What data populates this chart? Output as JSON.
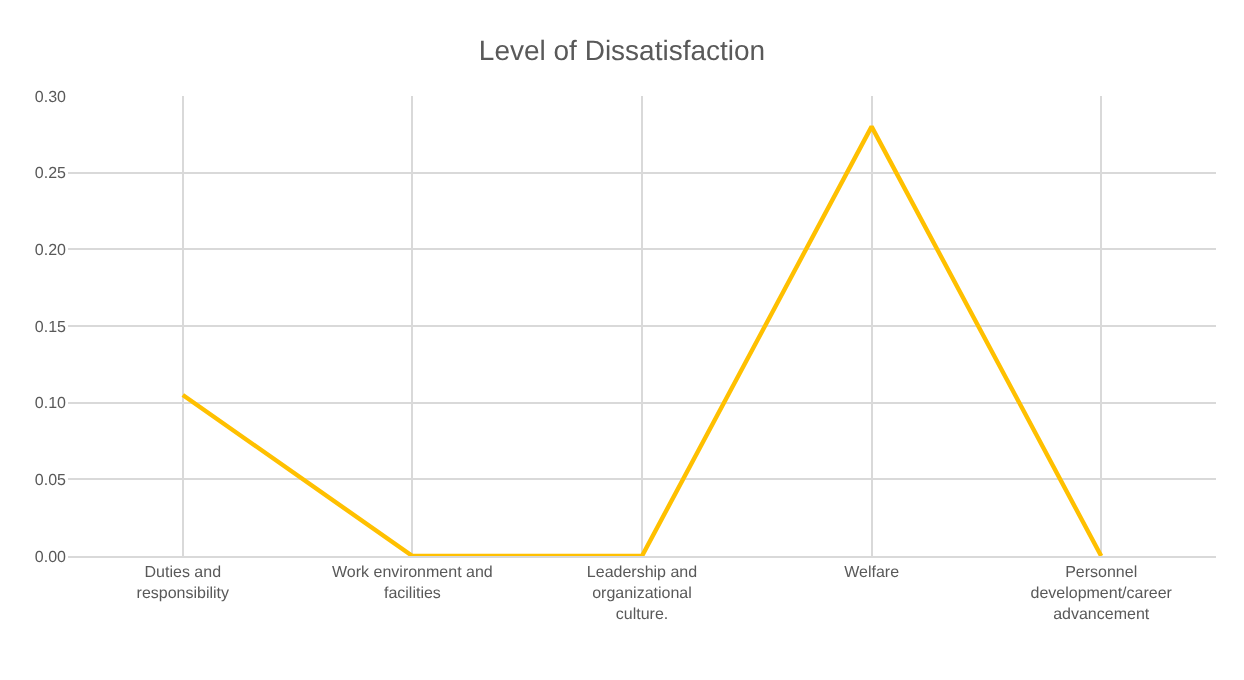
{
  "chart_data": {
    "type": "line",
    "title": "Level of Dissatisfaction",
    "categories": [
      "Duties and responsibility",
      "Work environment and facilities",
      "Leadership and organizational culture.",
      "Welfare",
      "Personnel development/career advancement"
    ],
    "series": [
      {
        "color": "#ffc000",
        "values": [
          0.105,
          0,
          0,
          0.28,
          0
        ]
      }
    ],
    "ylim": [
      0,
      0.3
    ],
    "yticks": [
      {
        "value": 0,
        "label": "0.00"
      },
      {
        "value": 0.05,
        "label": "0.05"
      },
      {
        "value": 0.1,
        "label": "0.10"
      },
      {
        "value": 0.15,
        "label": "0.15"
      },
      {
        "value": 0.2,
        "label": "0.20"
      },
      {
        "value": 0.25,
        "label": "0.25"
      },
      {
        "value": 0.3,
        "label": "0.30"
      }
    ],
    "grid": true,
    "marker": "none",
    "line_style": "solid"
  }
}
